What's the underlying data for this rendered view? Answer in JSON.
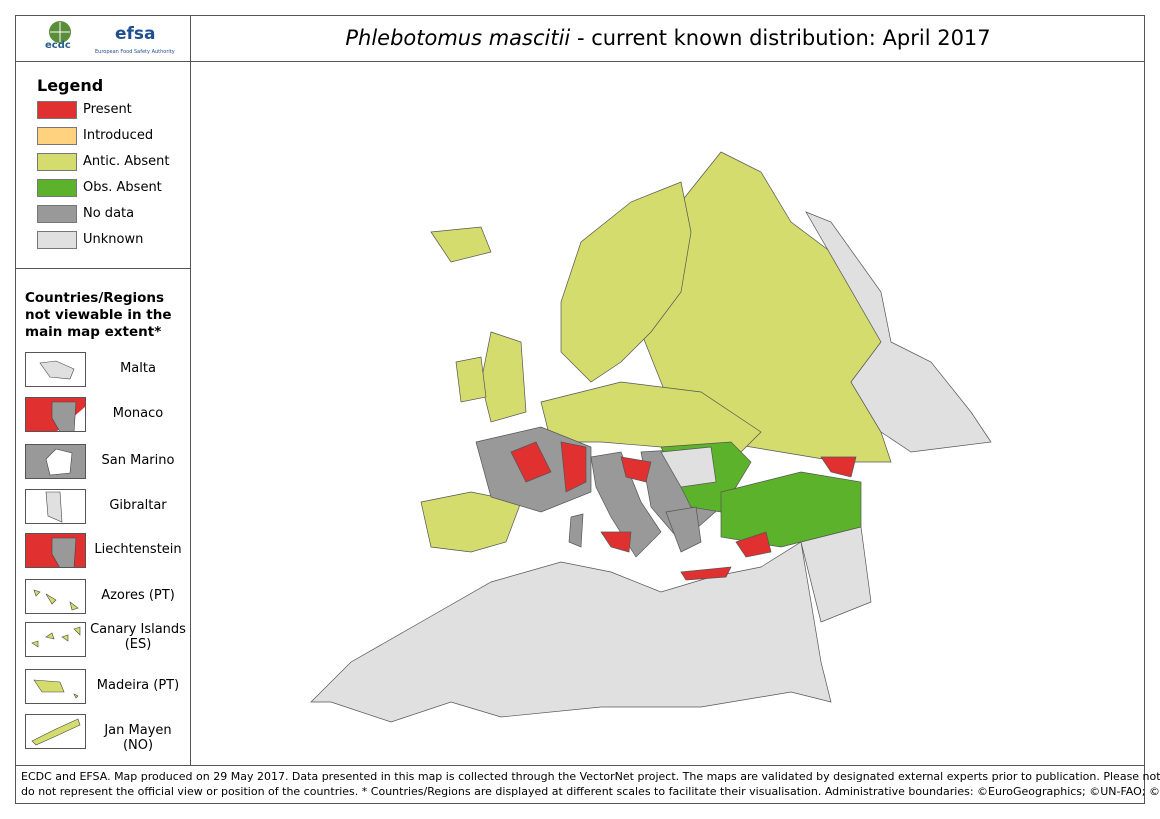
{
  "header": {
    "logo_ecdc": "ecdc",
    "logo_efsa": "efsa",
    "logo_efsa_sub": "European Food Safety Authority",
    "title_species": "Phlebotomus mascitii",
    "title_rest": " - current known distribution: April 2017"
  },
  "legend": {
    "title": "Legend",
    "items": [
      {
        "label": "Present",
        "color": "#e03030"
      },
      {
        "label": "Introduced",
        "color": "#ffd27f"
      },
      {
        "label": "Antic. Absent",
        "color": "#d3dc6c"
      },
      {
        "label": "Obs. Absent",
        "color": "#5cb22b"
      },
      {
        "label": "No data",
        "color": "#999999"
      },
      {
        "label": "Unknown",
        "color": "#e0e0e0"
      }
    ]
  },
  "insets": {
    "title": "Countries/Regions not viewable in the main map extent*",
    "items": [
      "Malta",
      "Monaco",
      "San Marino",
      "Gibraltar",
      "Liechtenstein",
      "Azores (PT)",
      "Canary Islands (ES)",
      "Madeira (PT)",
      "Jan Mayen (NO)"
    ]
  },
  "footer": {
    "lines": [
      "ECDC and EFSA. Map produced on 29 May 2017. Data presented in this map is collected through the VectorNet project. The maps are validated by designated external experts prior to publication. Please note that the data",
      "do not represent the official view or position of the countries. * Countries/Regions are displayed at different scales to facilitate their visualisation. Administrative boundaries: ©EuroGeographics; ©UN-FAO; ©Turkstat."
    ]
  }
}
